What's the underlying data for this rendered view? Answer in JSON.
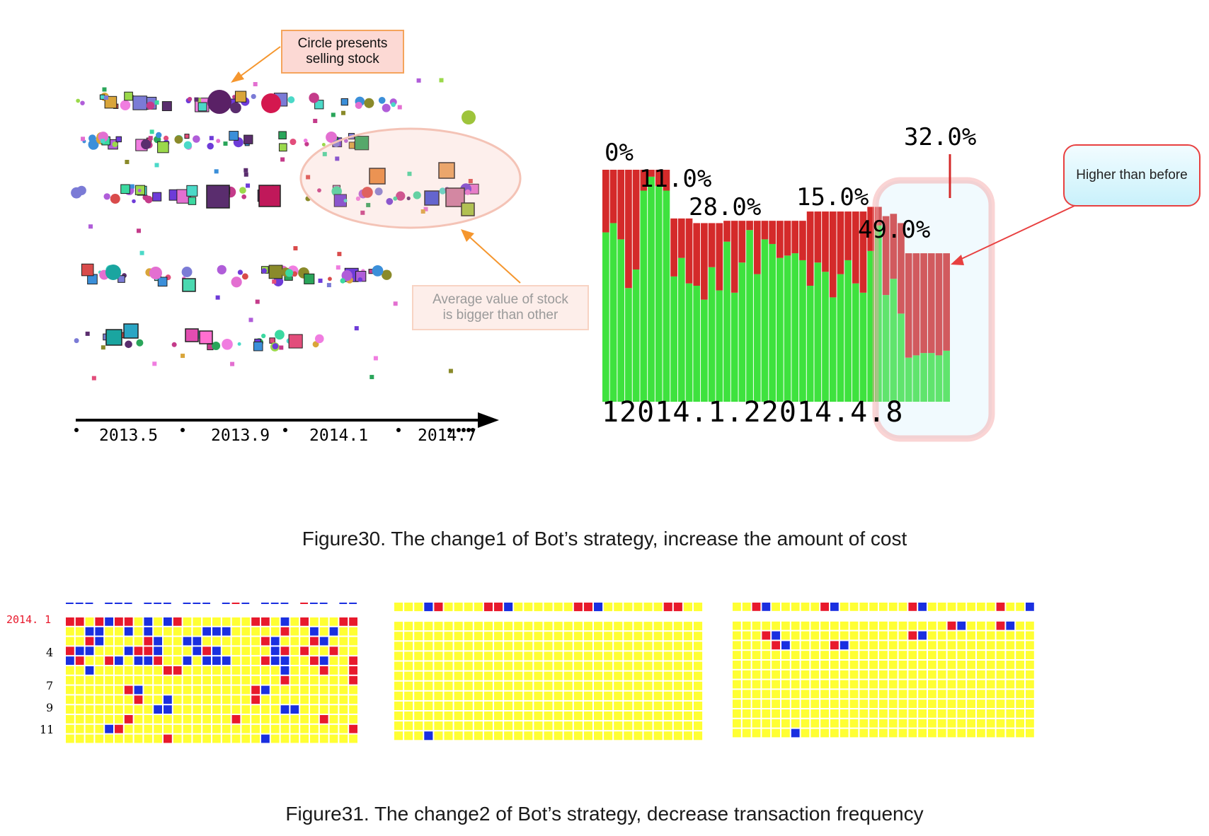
{
  "figure30": {
    "caption": "Figure30. The change1 of Bot’s strategy, increase the amount of cost",
    "scatter": {
      "x_ticks": [
        "2013.5",
        "2013.9",
        "2014.1",
        "2014.7"
      ],
      "callout_circle": [
        "Circle presents",
        "selling stock"
      ],
      "callout_average": [
        "Average value of stock",
        "is bigger than other"
      ]
    },
    "bar_panel": {
      "percent_labels": [
        "0%",
        "11.0%",
        "28.0%",
        "15.0%",
        "49.0%",
        "32.0%"
      ],
      "date_labels": [
        "1",
        "2014.1.2",
        "2014.4.8"
      ],
      "callout_higher": "Higher than before",
      "colors": {
        "upper": "#d42a2a",
        "lower": "#3ee23e"
      }
    }
  },
  "figure31": {
    "caption": "Figure31. The change2 of Bot’s strategy, decrease transaction frequency",
    "row_labels": [
      "2014. 1",
      "4",
      "7",
      "9",
      "11"
    ],
    "colors": {
      "empty": "#ffff33",
      "red": "#e8192c",
      "blue": "#1a2fe0"
    }
  },
  "chart_data": [
    {
      "type": "scatter",
      "x_tick_labels": [
        "2013.5",
        "2013.9",
        "2014.1",
        "2014.7"
      ],
      "marker_meaning": {
        "circle": "selling stock"
      },
      "annotations": [
        "Circle presents selling stock",
        "Average value of stock is bigger than other"
      ]
    },
    {
      "type": "bar",
      "stacked": true,
      "value_labels": [
        "0%",
        "11.0%",
        "28.0%",
        "15.0%",
        "49.0%",
        "32.0%"
      ],
      "x_labels": [
        "1",
        "2014.1.2",
        "2014.4.8"
      ],
      "series": [
        {
          "values": [
            0.73,
            0.77,
            0.7,
            0.49,
            0.57,
            0.91,
            0.97,
            0.93,
            0.91,
            0.54,
            0.62,
            0.51,
            0.5,
            0.44,
            0.58,
            0.48,
            0.69,
            0.47,
            0.6,
            0.74,
            0.55,
            0.7,
            0.68,
            0.62,
            0.63,
            0.64,
            0.61,
            0.5,
            0.6,
            0.56,
            0.45,
            0.55,
            0.61,
            0.51,
            0.47,
            0.65,
            0.76,
            0.46,
            0.53,
            0.38,
            0.19,
            0.2,
            0.21,
            0.21,
            0.2,
            0.22
          ]
        },
        {
          "values": [
            0.27,
            0.23,
            0.3,
            0.51,
            0.43,
            0.09,
            0.03,
            0.07,
            0.09,
            0.25,
            0.17,
            0.28,
            0.27,
            0.33,
            0.19,
            0.29,
            0.09,
            0.31,
            0.18,
            0.04,
            0.23,
            0.08,
            0.1,
            0.16,
            0.15,
            0.14,
            0.17,
            0.32,
            0.22,
            0.26,
            0.37,
            0.27,
            0.21,
            0.31,
            0.35,
            0.19,
            0.08,
            0.34,
            0.28,
            0.39,
            0.45,
            0.44,
            0.43,
            0.43,
            0.44,
            0.42
          ]
        }
      ]
    },
    {
      "type": "heatmap",
      "panels": [
        {
          "rows": [
            "------------------------------",
            "RR.RBRR.B.BR.......RR.B.R...RR",
            "..BB..B.B.....BBB.....R..B.B..",
            "..RB....RB..BB......RB...RB...",
            "RBB...BRRB...BRB.....BR.R..R..",
            "BR..RB.BBR..B.BBB...RBB..RB..R",
            "..B.......RR..........B...R..R",
            "......................R......R",
            "......RB...........RB.........",
            ".......R..B........R..........",
            ".........BB...........BB......",
            "......R..........R........R...",
            "....BR.......................R",
            "..........R.........B........."
          ]
        },
        {
          "rows": [
            "...BR....RRB......RRB......RR..",
            "...............................",
            "...............................",
            "...............................",
            "...............................",
            "...............................",
            "...............................",
            "...............................",
            "...............................",
            "...............................",
            "...............................",
            "...............................",
            "...B..........................."
          ]
        },
        {
          "rows": [
            "..RB.....RB.......RB.......R..B",
            "......................RB...RB..",
            "...RB.............RB...........",
            "....RB....RB...................",
            "...............................",
            "...............................",
            "...............................",
            "...............................",
            "...............................",
            "...............................",
            "...............................",
            "...............................",
            "......B........................"
          ]
        }
      ]
    }
  ]
}
